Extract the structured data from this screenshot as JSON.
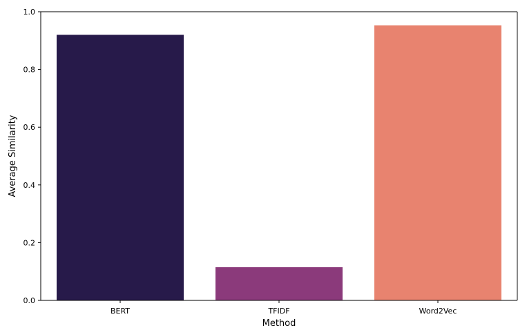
{
  "chart_data": {
    "type": "bar",
    "title": "",
    "xlabel": "Method",
    "ylabel": "Average Similarity",
    "categories": [
      "BERT",
      "TFIDF",
      "Word2Vec"
    ],
    "values": [
      0.92,
      0.115,
      0.953
    ],
    "colors": [
      "#271a4a",
      "#8b3a7b",
      "#e8836f"
    ],
    "ylim": [
      0,
      1.0
    ],
    "yticks": [
      "0.0",
      "0.2",
      "0.4",
      "0.6",
      "0.8",
      "1.0"
    ],
    "grid": false,
    "legend": "none"
  }
}
